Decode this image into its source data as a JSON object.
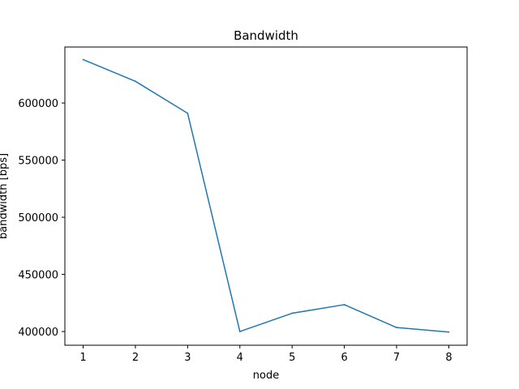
{
  "chart_data": {
    "type": "line",
    "title": "Bandwidth",
    "xlabel": "node",
    "ylabel": "bandwidth [bps]",
    "x": [
      1,
      2,
      3,
      4,
      5,
      6,
      7,
      8
    ],
    "series": [
      {
        "values": [
          638000,
          619000,
          591000,
          400000,
          416000,
          423500,
          403500,
          399500
        ],
        "color": "#1f77b4"
      }
    ],
    "xlim": [
      0.65,
      8.35
    ],
    "ylim": [
      388000,
      649000
    ],
    "xticks": [
      1,
      2,
      3,
      4,
      5,
      6,
      7,
      8
    ],
    "yticks": [
      400000,
      450000,
      500000,
      550000,
      600000
    ],
    "grid": false,
    "legend": "none"
  }
}
